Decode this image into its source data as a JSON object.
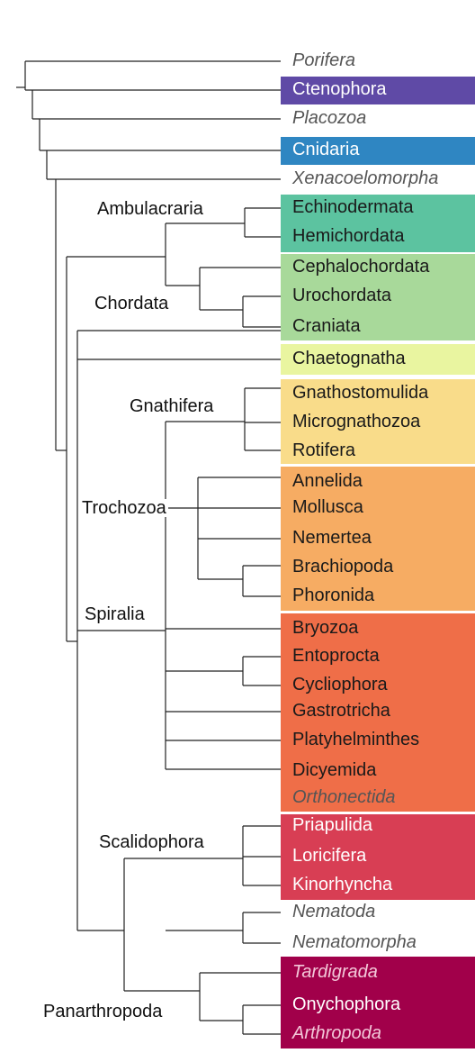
{
  "bands": [
    {
      "name": "ctenophora-band",
      "color": "#5f4aa6"
    },
    {
      "name": "cnidaria-band",
      "color": "#2f86c2"
    },
    {
      "name": "deuterostomia-ambulacraria-band",
      "color": "#5cc3a0"
    },
    {
      "name": "chordata-band",
      "color": "#a8d99a"
    },
    {
      "name": "chaetognatha-band",
      "color": "#e9f5a0"
    },
    {
      "name": "gnathifera-band",
      "color": "#f9dc8a"
    },
    {
      "name": "trochozoa-band",
      "color": "#f6ac63"
    },
    {
      "name": "spiralia-rest-band",
      "color": "#ef6e48"
    },
    {
      "name": "scalidophora-band",
      "color": "#d83e54"
    },
    {
      "name": "panarthropoda-band",
      "color": "#a1004a"
    }
  ],
  "taxa": [
    {
      "label": "Porifera",
      "italic": true,
      "color": "#555555"
    },
    {
      "label": "Ctenophora",
      "italic": false,
      "color": "#ffffff"
    },
    {
      "label": "Placozoa",
      "italic": true,
      "color": "#555555"
    },
    {
      "label": "Cnidaria",
      "italic": false,
      "color": "#ffffff"
    },
    {
      "label": "Xenacoelomorpha",
      "italic": true,
      "color": "#555555"
    },
    {
      "label": "Echinodermata",
      "italic": false,
      "color": "#1a1a1a"
    },
    {
      "label": "Hemichordata",
      "italic": false,
      "color": "#1a1a1a"
    },
    {
      "label": "Cephalochordata",
      "italic": false,
      "color": "#1a1a1a"
    },
    {
      "label": "Urochordata",
      "italic": false,
      "color": "#1a1a1a"
    },
    {
      "label": "Craniata",
      "italic": false,
      "color": "#1a1a1a"
    },
    {
      "label": "Chaetognatha",
      "italic": false,
      "color": "#1a1a1a"
    },
    {
      "label": "Gnathostomulida",
      "italic": false,
      "color": "#1a1a1a"
    },
    {
      "label": "Micrognathozoa",
      "italic": false,
      "color": "#1a1a1a"
    },
    {
      "label": "Rotifera",
      "italic": false,
      "color": "#1a1a1a"
    },
    {
      "label": "Annelida",
      "italic": false,
      "color": "#1a1a1a"
    },
    {
      "label": "Mollusca",
      "italic": false,
      "color": "#1a1a1a"
    },
    {
      "label": "Nemertea",
      "italic": false,
      "color": "#1a1a1a"
    },
    {
      "label": "Brachiopoda",
      "italic": false,
      "color": "#1a1a1a"
    },
    {
      "label": "Phoronida",
      "italic": false,
      "color": "#1a1a1a"
    },
    {
      "label": "Bryozoa",
      "italic": false,
      "color": "#1a1a1a"
    },
    {
      "label": "Entoprocta",
      "italic": false,
      "color": "#1a1a1a"
    },
    {
      "label": "Cycliophora",
      "italic": false,
      "color": "#1a1a1a"
    },
    {
      "label": "Gastrotricha",
      "italic": false,
      "color": "#1a1a1a"
    },
    {
      "label": "Platyhelminthes",
      "italic": false,
      "color": "#1a1a1a"
    },
    {
      "label": "Dicyemida",
      "italic": false,
      "color": "#1a1a1a"
    },
    {
      "label": "Orthonectida",
      "italic": true,
      "color": "#555555"
    },
    {
      "label": "Priapulida",
      "italic": false,
      "color": "#ffffff"
    },
    {
      "label": "Loricifera",
      "italic": false,
      "color": "#ffffff"
    },
    {
      "label": "Kinorhyncha",
      "italic": false,
      "color": "#ffffff"
    },
    {
      "label": "Nematoda",
      "italic": true,
      "color": "#555555"
    },
    {
      "label": "Nematomorpha",
      "italic": true,
      "color": "#555555"
    },
    {
      "label": "Tardigrada",
      "italic": true,
      "color": "#f3c6d8"
    },
    {
      "label": "Onychophora",
      "italic": false,
      "color": "#ffffff"
    },
    {
      "label": "Arthropoda",
      "italic": true,
      "color": "#f3c6d8"
    }
  ],
  "clades": {
    "ambulacraria": "Ambulacraria",
    "chordata": "Chordata",
    "gnathifera": "Gnathifera",
    "trochozoa": "Trochozoa",
    "spiralia": "Spiralia",
    "scalidophora": "Scalidophora",
    "panarthropoda": "Panarthropoda"
  }
}
